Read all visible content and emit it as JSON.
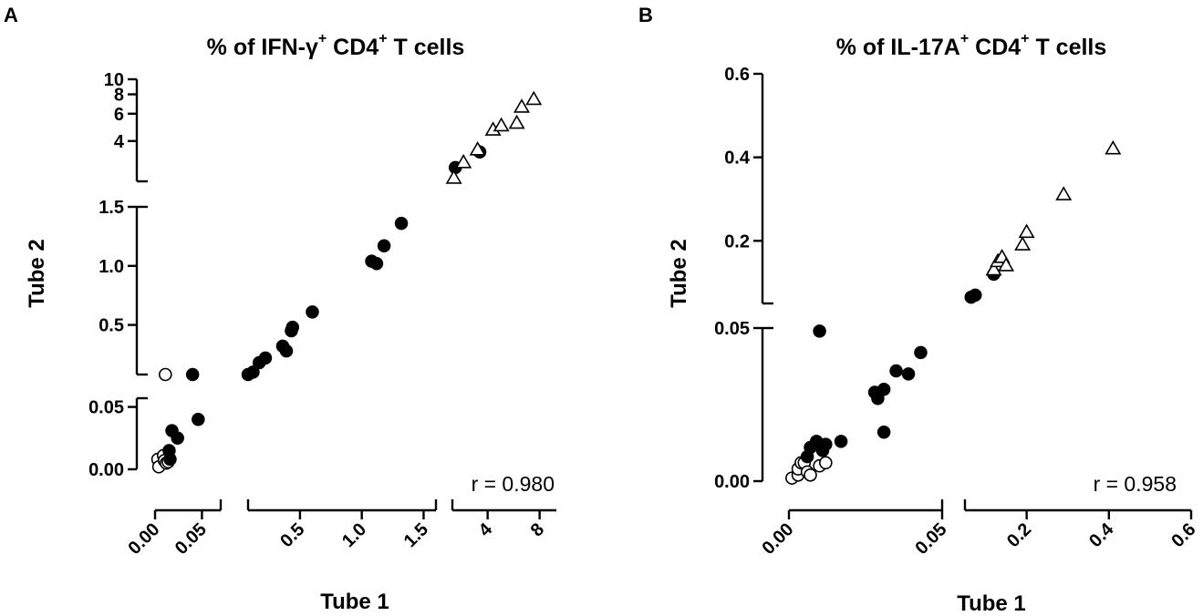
{
  "chart_data": [
    {
      "type": "scatter",
      "panel_label": "A",
      "title_parts": [
        "% of IFN-γ",
        "+",
        " CD4",
        "+",
        " T cells"
      ],
      "xlabel": "Tube 1",
      "ylabel": "Tube 2",
      "annotation": "r = 0.980",
      "x_segments": [
        {
          "range": [
            0,
            0.07
          ],
          "ticks": [
            0.0,
            0.05
          ],
          "tick_labels": [
            "0.00",
            "0.05"
          ]
        },
        {
          "range": [
            0.08,
            1.6
          ],
          "ticks": [
            0.5,
            1.0,
            1.5
          ],
          "tick_labels": [
            "0.5",
            "1.0",
            "1.5"
          ]
        },
        {
          "range": [
            2.5,
            10
          ],
          "scale": "log",
          "ticks": [
            4,
            8
          ],
          "tick_labels": [
            "4",
            "8"
          ]
        }
      ],
      "y_segments": [
        {
          "range": [
            0,
            0.057
          ],
          "ticks": [
            0.0,
            0.05
          ],
          "tick_labels": [
            "0.00",
            "0.05"
          ]
        },
        {
          "range": [
            0.08,
            1.5
          ],
          "ticks": [
            0.5,
            1.0,
            1.5
          ],
          "tick_labels": [
            "0.5",
            "1.0",
            "1.5"
          ]
        },
        {
          "range": [
            2.2,
            10
          ],
          "scale": "log",
          "ticks": [
            4,
            6,
            8,
            10
          ],
          "tick_labels": [
            "4",
            "6",
            "8",
            "10"
          ]
        }
      ],
      "series": [
        {
          "name": "open circles",
          "marker": "open-circle",
          "points": [
            [
              0.003,
              0.008
            ],
            [
              0.004,
              0.002
            ],
            [
              0.009,
              0.011
            ],
            [
              0.01,
              0.007
            ],
            [
              0.012,
              0.005
            ],
            [
              0.014,
              0.006
            ]
          ],
          "off_scale_points": [
            [
              0.011,
              "between 0.05 and 0.08"
            ]
          ]
        },
        {
          "name": "filled circles",
          "marker": "filled-circle",
          "points": [
            [
              0.015,
              0.015
            ],
            [
              0.016,
              0.008
            ],
            [
              0.018,
              0.031
            ],
            [
              0.024,
              0.025
            ],
            [
              0.046,
              0.04
            ],
            [
              0.08,
              0.08
            ],
            [
              0.12,
              0.1
            ],
            [
              0.17,
              0.18
            ],
            [
              0.22,
              0.22
            ],
            [
              0.36,
              0.32
            ],
            [
              0.39,
              0.28
            ],
            [
              0.43,
              0.45
            ],
            [
              0.44,
              0.48
            ],
            [
              0.6,
              0.61
            ],
            [
              1.08,
              1.04
            ],
            [
              1.12,
              1.02
            ],
            [
              1.18,
              1.17
            ],
            [
              1.32,
              1.36
            ],
            [
              2.6,
              2.7
            ],
            [
              3.6,
              3.4
            ]
          ],
          "off_scale_points": [
            [
              0.04,
              "between 0.05 and 0.08"
            ]
          ]
        },
        {
          "name": "open triangles",
          "marker": "open-triangle",
          "points": [
            [
              2.55,
              2.3
            ],
            [
              2.9,
              2.9
            ],
            [
              3.5,
              3.5
            ],
            [
              4.3,
              4.7
            ],
            [
              4.8,
              5.0
            ],
            [
              5.9,
              5.2
            ],
            [
              6.3,
              6.6
            ],
            [
              7.4,
              7.4
            ]
          ]
        }
      ]
    },
    {
      "type": "scatter",
      "panel_label": "B",
      "title_parts": [
        "% of IL-17A",
        "+",
        " CD4",
        "+",
        " T cells"
      ],
      "xlabel": "Tube 1",
      "ylabel": "Tube 2",
      "annotation": "r = 0.958",
      "x_segments": [
        {
          "range": [
            0,
            0.05
          ],
          "ticks": [
            0.0,
            0.05
          ],
          "tick_labels": [
            "0.00",
            "0.05"
          ]
        },
        {
          "range": [
            0.05,
            0.6
          ],
          "ticks": [
            0.2,
            0.4,
            0.6
          ],
          "tick_labels": [
            "0.2",
            "0.4",
            "0.6"
          ]
        }
      ],
      "y_segments": [
        {
          "range": [
            0,
            0.05
          ],
          "ticks": [
            0.0,
            0.05
          ],
          "tick_labels": [
            "0.00",
            "0.05"
          ]
        },
        {
          "range": [
            0.05,
            0.6
          ],
          "ticks": [
            0.2,
            0.4,
            0.6
          ],
          "tick_labels": [
            "0.2",
            "0.4",
            "0.6"
          ]
        }
      ],
      "series": [
        {
          "name": "open circles",
          "marker": "open-circle",
          "points": [
            [
              0.001,
              0.001
            ],
            [
              0.003,
              0.002
            ],
            [
              0.003,
              0.004
            ],
            [
              0.004,
              0.006
            ],
            [
              0.005,
              0.006
            ],
            [
              0.006,
              0.003
            ],
            [
              0.007,
              0.002
            ],
            [
              0.01,
              0.005
            ],
            [
              0.012,
              0.006
            ]
          ]
        },
        {
          "name": "filled circles",
          "marker": "filled-circle",
          "points": [
            [
              0.006,
              0.008
            ],
            [
              0.007,
              0.011
            ],
            [
              0.009,
              0.013
            ],
            [
              0.011,
              0.01
            ],
            [
              0.012,
              0.012
            ],
            [
              0.017,
              0.013
            ],
            [
              0.01,
              0.049
            ],
            [
              0.028,
              0.029
            ],
            [
              0.029,
              0.027
            ],
            [
              0.031,
              0.03
            ],
            [
              0.031,
              0.016
            ],
            [
              0.035,
              0.036
            ],
            [
              0.043,
              0.042
            ],
            [
              0.039,
              0.035
            ],
            [
              0.065,
              0.065
            ],
            [
              0.075,
              0.07
            ],
            [
              0.12,
              0.12
            ]
          ]
        },
        {
          "name": "open triangles",
          "marker": "open-triangle",
          "points": [
            [
              0.12,
              0.13
            ],
            [
              0.13,
              0.15
            ],
            [
              0.14,
              0.16
            ],
            [
              0.15,
              0.14
            ],
            [
              0.19,
              0.19
            ],
            [
              0.2,
              0.22
            ],
            [
              0.29,
              0.31
            ],
            [
              0.41,
              0.42
            ]
          ]
        }
      ]
    }
  ]
}
